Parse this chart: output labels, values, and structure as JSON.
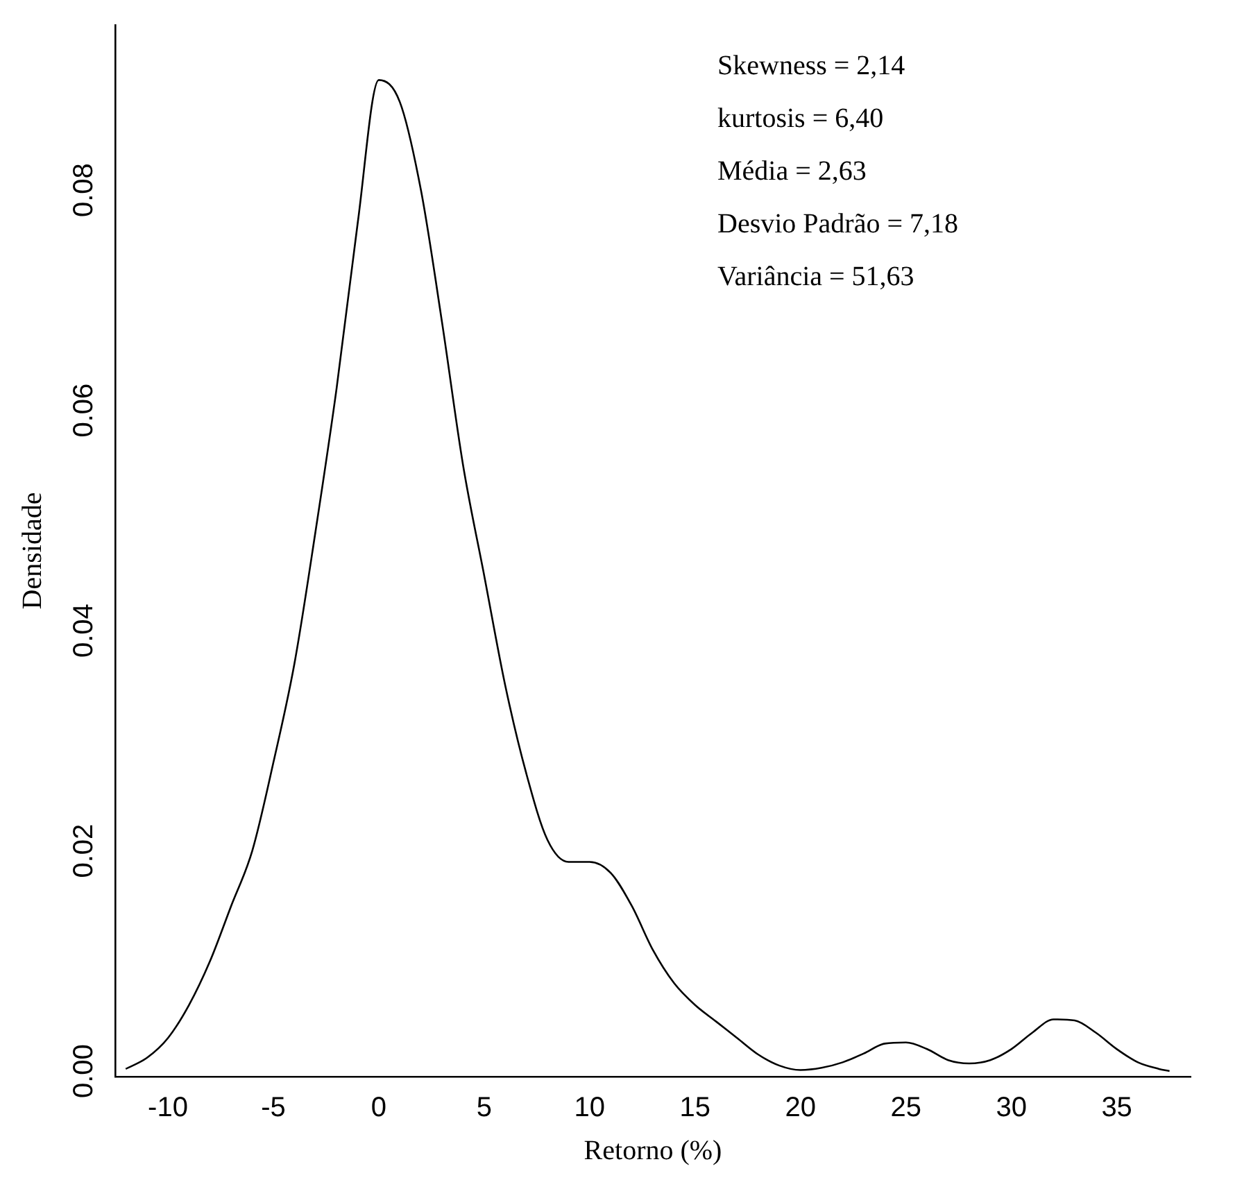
{
  "chart_data": {
    "type": "line",
    "xlabel": "Retorno (%)",
    "ylabel": "Densidade",
    "annotations": [
      "Skewness = 2,14",
      "kurtosis = 6,40",
      "Média = 2,63",
      "Desvio Padrão = 7,18",
      "Variância = 51,63"
    ],
    "x": [
      -12,
      -11,
      -10,
      -9,
      -8,
      -7,
      -6,
      -5,
      -4,
      -3,
      -2,
      -1,
      0,
      1,
      2,
      3,
      4,
      5,
      6,
      7,
      8,
      9,
      10,
      11,
      12,
      13,
      14,
      15,
      16,
      17,
      18,
      19,
      20,
      21,
      22,
      23,
      24,
      25,
      26,
      27,
      28,
      29,
      30,
      31,
      32,
      33,
      34,
      35,
      36,
      37,
      37.5
    ],
    "series": [
      {
        "color": "#000000",
        "values": [
          0.0002,
          0.0012,
          0.003,
          0.006,
          0.01,
          0.015,
          0.02,
          0.028,
          0.037,
          0.049,
          0.062,
          0.077,
          0.09,
          0.088,
          0.08,
          0.068,
          0.055,
          0.045,
          0.035,
          0.027,
          0.021,
          0.019,
          0.019,
          0.018,
          0.015,
          0.011,
          0.008,
          0.006,
          0.0045,
          0.003,
          0.0015,
          0.0005,
          0.0001,
          0.0003,
          0.0008,
          0.0016,
          0.0025,
          0.0026,
          0.002,
          0.001,
          0.0007,
          0.001,
          0.002,
          0.0035,
          0.0047,
          0.0046,
          0.0035,
          0.002,
          0.0008,
          0.0002,
          0.0
        ]
      }
    ],
    "xlim": [
      -12.5,
      38.5
    ],
    "xticks": [
      -10,
      -5,
      0,
      5,
      10,
      15,
      20,
      25,
      30,
      35
    ],
    "ylim": [
      -0.0005,
      0.095
    ],
    "yticks": [
      {
        "value": 0,
        "label": "0.00"
      },
      {
        "value": 0.02,
        "label": "0.02"
      },
      {
        "value": 0.04,
        "label": "0.04"
      },
      {
        "value": 0.06,
        "label": "0.06"
      },
      {
        "value": 0.08,
        "label": "0.08"
      }
    ]
  }
}
